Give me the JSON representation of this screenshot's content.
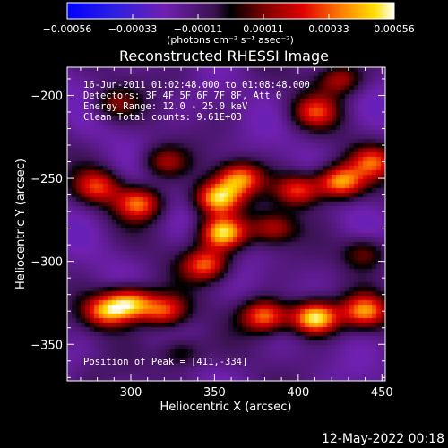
{
  "chart_data": {
    "type": "heatmap",
    "title": "Reconstructed RHESSI Image",
    "xlabel": "Heliocentric X (arcsec)",
    "ylabel": "Heliocentric Y (arcsec)",
    "xlim": [
      262,
      452
    ],
    "ylim": [
      -372,
      -183
    ],
    "x_ticks": [
      "300",
      "350",
      "400",
      "450"
    ],
    "y_ticks": [
      "-200",
      "-250",
      "-300",
      "-350"
    ],
    "x_tick_values": [
      300,
      350,
      400,
      450
    ],
    "y_tick_values": [
      -200,
      -250,
      -300,
      -350
    ],
    "colorbar": {
      "tick_labels": [
        "-0.00056",
        "-0.00033",
        "-0.00011",
        "0.00011",
        "0.00033",
        "0.00056"
      ],
      "range": [
        -0.00056,
        0.00056
      ],
      "units": "(photons cm⁻² s⁻¹ asec⁻²)"
    },
    "annotations": [
      "16-Jun-2011 01:02:48.000 to 01:08:48.000",
      "Detectors: 3F 4F 5F 6F 7F 8F, Att 0",
      "Energy Range: 12.0 - 25.0 keV",
      "Clean     Total counts: 9.61E+03"
    ],
    "peak_label": "Position of Peak = [411,-334]",
    "peak": [
      411,
      -334
    ],
    "sources": [
      {
        "x": 352,
        "y": -262,
        "value": 0.00046
      },
      {
        "x": 355,
        "y": -283,
        "value": 0.0005
      },
      {
        "x": 365,
        "y": -250,
        "value": 0.00036
      },
      {
        "x": 345,
        "y": -302,
        "value": 0.00033
      },
      {
        "x": 300,
        "y": -325,
        "value": 0.00044
      },
      {
        "x": 320,
        "y": -330,
        "value": 0.0003
      },
      {
        "x": 285,
        "y": -330,
        "value": 0.00035
      },
      {
        "x": 410,
        "y": -334,
        "value": 0.00056
      },
      {
        "x": 380,
        "y": -333,
        "value": 0.00036
      },
      {
        "x": 440,
        "y": -330,
        "value": 0.00036
      },
      {
        "x": 425,
        "y": -252,
        "value": 0.00044
      },
      {
        "x": 400,
        "y": -257,
        "value": 0.0003
      },
      {
        "x": 445,
        "y": -240,
        "value": 0.00024
      },
      {
        "x": 305,
        "y": -265,
        "value": 0.00033
      },
      {
        "x": 280,
        "y": -255,
        "value": 0.00024
      },
      {
        "x": 320,
        "y": -240,
        "value": 0.00015
      },
      {
        "x": 410,
        "y": -210,
        "value": 0.00022
      },
      {
        "x": 425,
        "y": -190,
        "value": 0.0002
      },
      {
        "x": 385,
        "y": -280,
        "value": 0.00018
      },
      {
        "x": 440,
        "y": -295,
        "value": 0.00012
      },
      {
        "x": 290,
        "y": -205,
        "value": 0.0001
      },
      {
        "x": 330,
        "y": -190,
        "value": -0.00012
      },
      {
        "x": 275,
        "y": -370,
        "value": -0.0001
      },
      {
        "x": 330,
        "y": -355,
        "value": 0.0001
      }
    ]
  },
  "footer": {
    "timestamp": "12-May-2022 00:18"
  }
}
